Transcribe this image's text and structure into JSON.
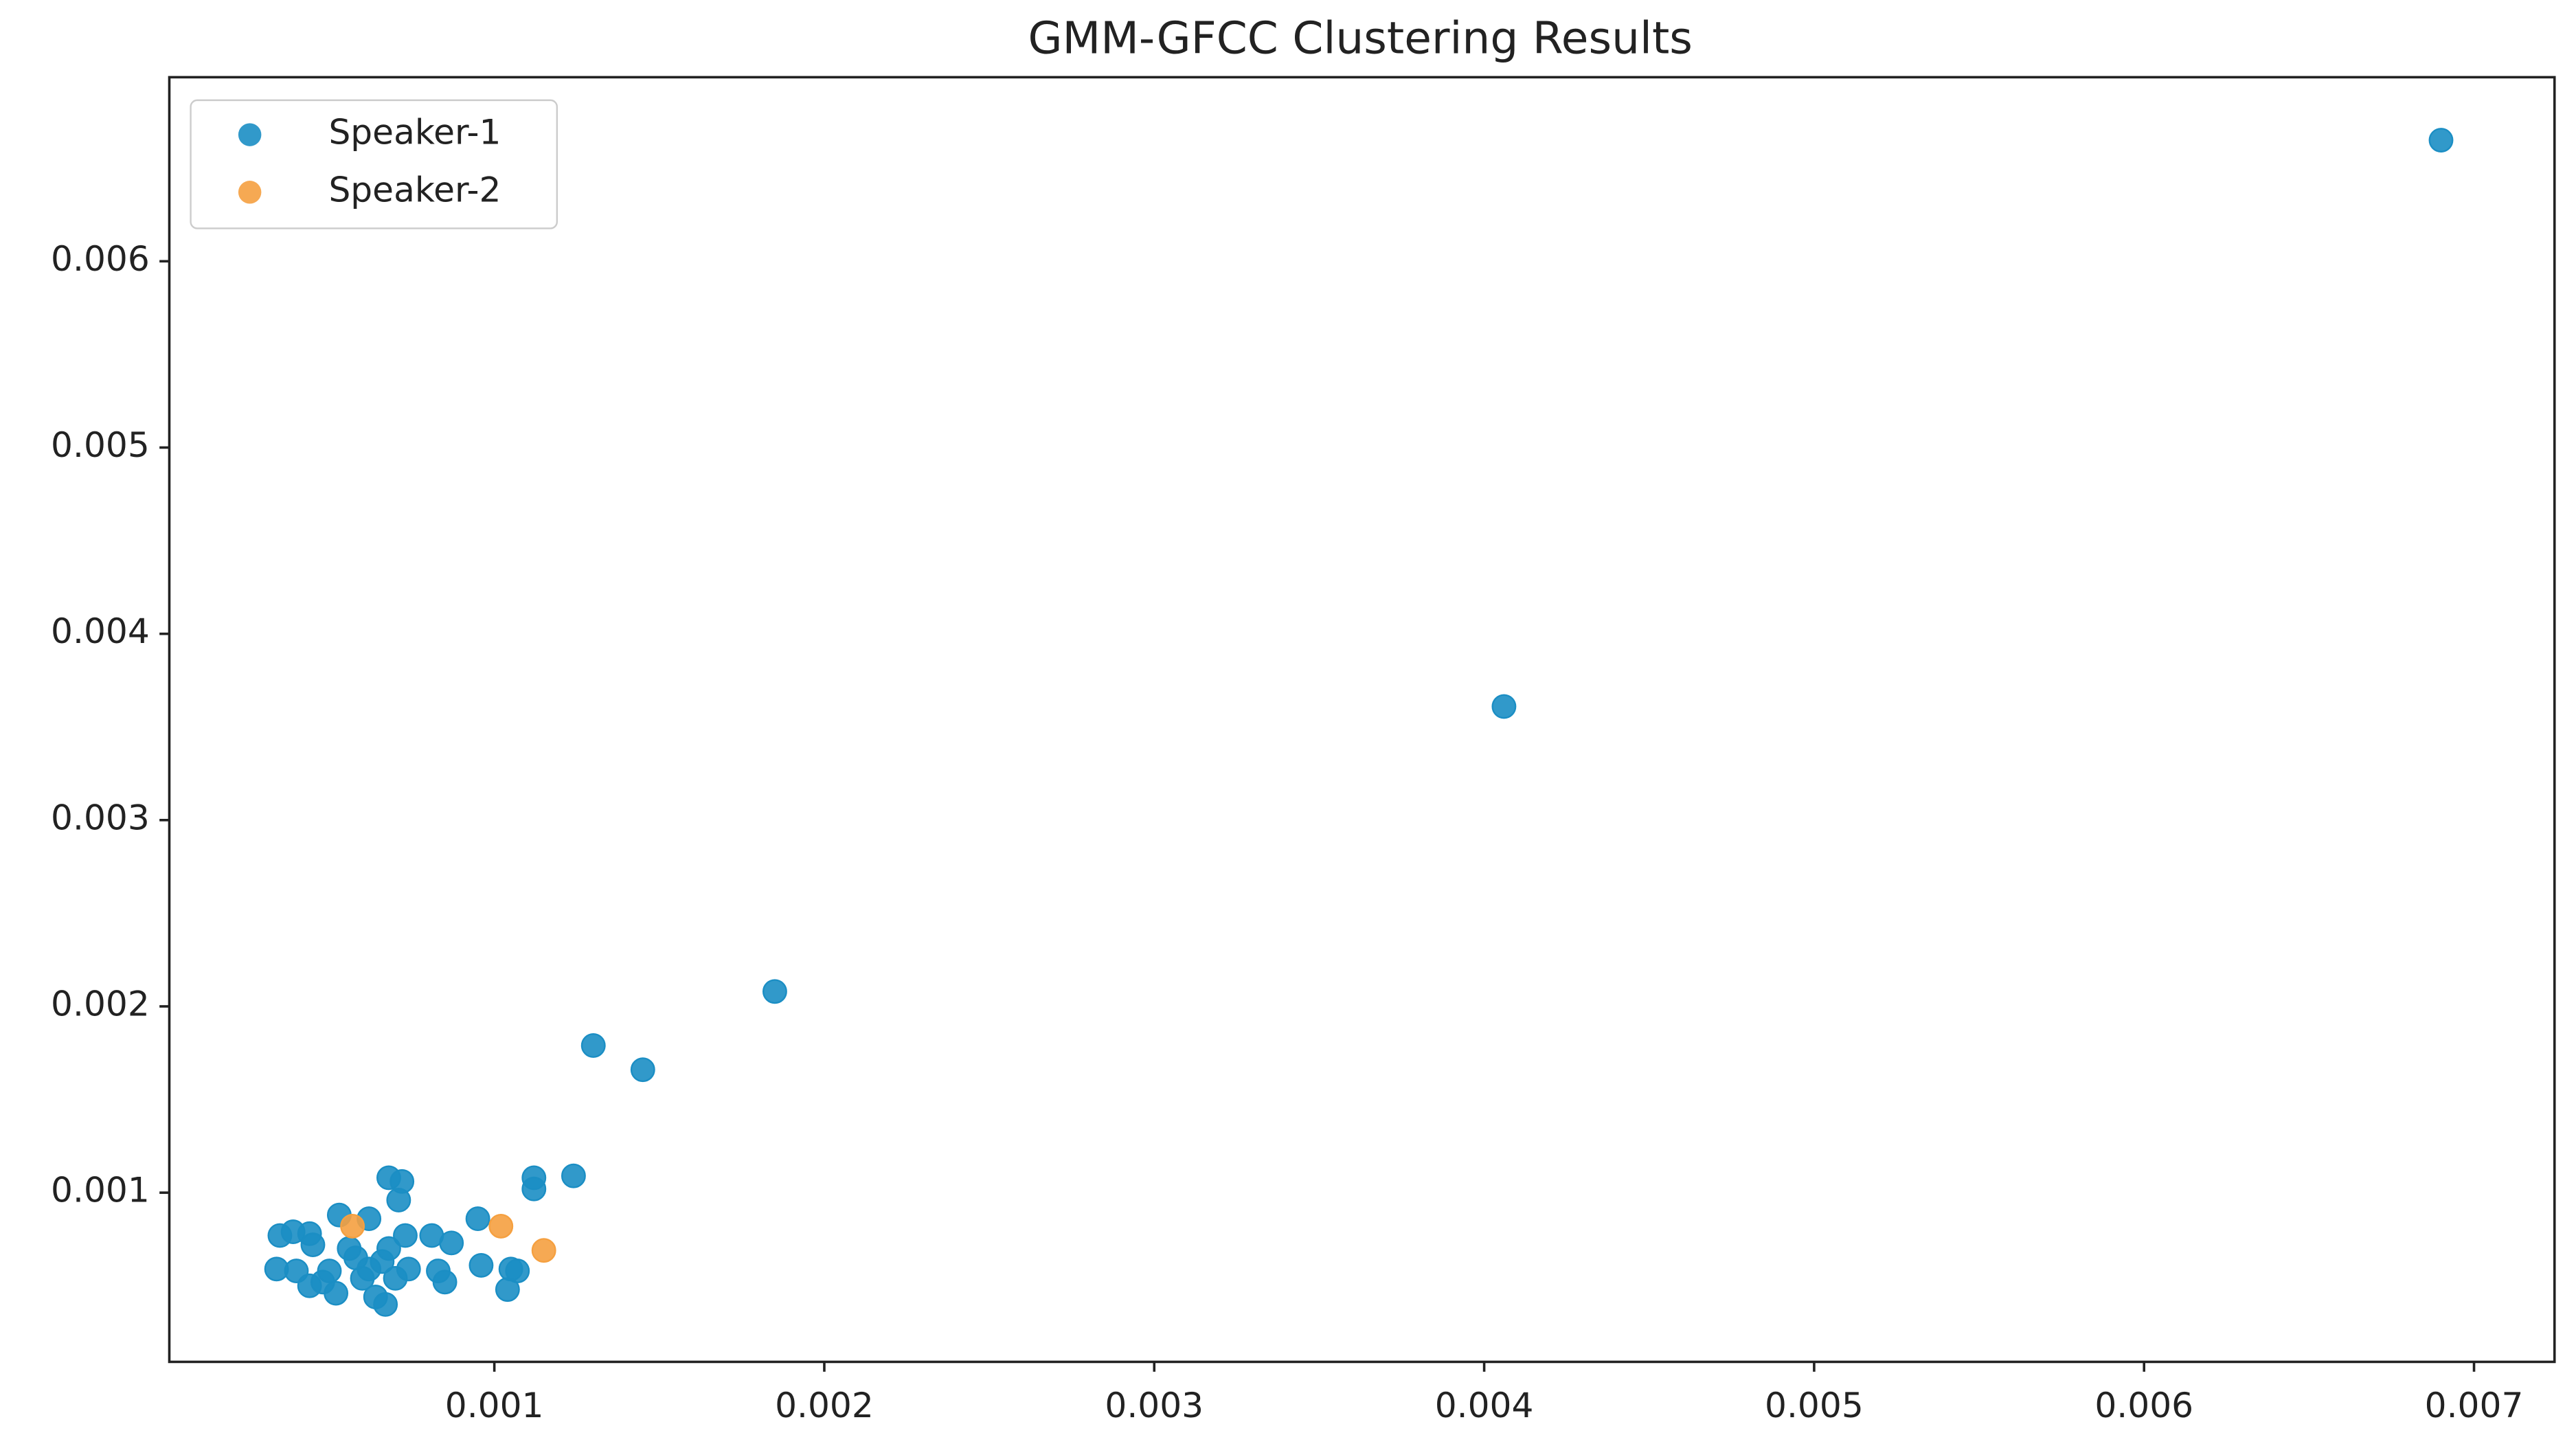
{
  "chart_data": {
    "type": "scatter",
    "title": "GMM-GFCC Clustering Results",
    "xlim": [
      1.49e-05,
      0.007244
    ],
    "ylim": [
      9.17e-05,
      0.006988
    ],
    "xticks": [
      0.001,
      0.002,
      0.003,
      0.004,
      0.005,
      0.006,
      0.007
    ],
    "yticks": [
      0.001,
      0.002,
      0.003,
      0.004,
      0.005,
      0.006
    ],
    "grid": false,
    "legend": "upper left",
    "series": [
      {
        "name": "Speaker-1",
        "color": "#1b8ec4",
        "x": [
          0.0069,
          0.00406,
          0.00185,
          0.0013,
          0.00145,
          0.00112,
          0.00124,
          0.00112,
          0.00068,
          0.00072,
          0.00071,
          0.00035,
          0.00039,
          0.00044,
          0.00045,
          0.00053,
          0.00062,
          0.00095,
          0.00081,
          0.00087,
          0.00073,
          0.00034,
          0.0004,
          0.00044,
          0.00048,
          0.00052,
          0.00058,
          0.00062,
          0.00066,
          0.0006,
          0.00064,
          0.00067,
          0.0007,
          0.00074,
          0.00083,
          0.00085,
          0.00096,
          0.00105,
          0.00107,
          0.00104,
          0.00056,
          0.00068,
          0.0005
        ],
        "values": [
          0.00665,
          0.00361,
          0.00208,
          0.00179,
          0.00166,
          0.00108,
          0.00109,
          0.00102,
          0.00108,
          0.00106,
          0.00096,
          0.00077,
          0.00079,
          0.00078,
          0.00072,
          0.00088,
          0.00086,
          0.00086,
          0.00077,
          0.00073,
          0.00077,
          0.00059,
          0.00058,
          0.0005,
          0.00052,
          0.00046,
          0.00065,
          0.00059,
          0.00063,
          0.00054,
          0.00044,
          0.0004,
          0.00054,
          0.00059,
          0.00058,
          0.00052,
          0.00061,
          0.00059,
          0.00058,
          0.00048,
          0.0007,
          0.0007,
          0.00058
        ]
      },
      {
        "name": "Speaker-2",
        "color": "#f5a040",
        "x": [
          0.00057,
          0.00102,
          0.00115
        ],
        "values": [
          0.00082,
          0.00082,
          0.00069
        ]
      }
    ]
  }
}
